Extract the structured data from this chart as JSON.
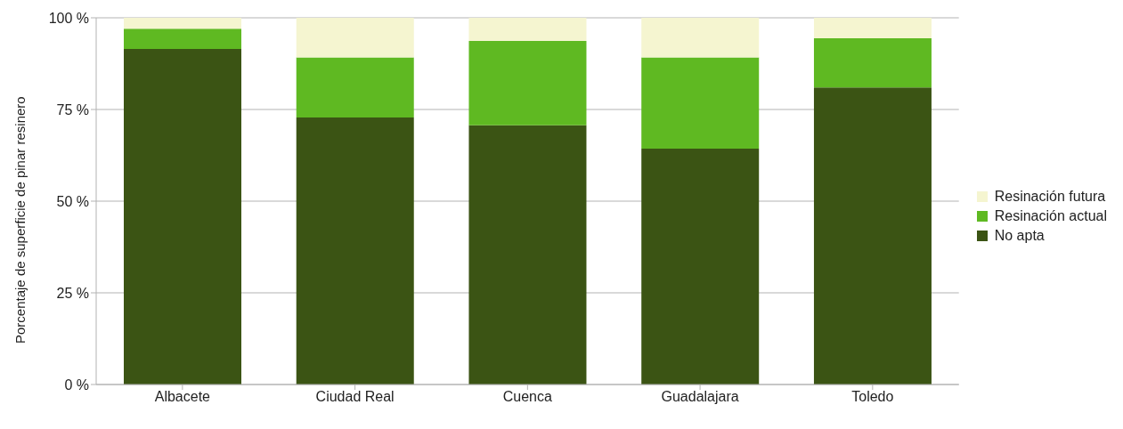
{
  "chart_data": {
    "type": "bar",
    "stacked": true,
    "ylabel": "Porcentaje de superficie de pinar resinero",
    "categories": [
      "Albacete",
      "Ciudad Real",
      "Cuenca",
      "Guadalajara",
      "Toledo"
    ],
    "series": [
      {
        "name": "No apta",
        "color": "#3b5414",
        "values": [
          91.5,
          72.8,
          70.7,
          64.3,
          81.0
        ]
      },
      {
        "name": "Resinación actual",
        "color": "#5fb922",
        "values": [
          5.5,
          16.4,
          23.0,
          24.9,
          13.4
        ]
      },
      {
        "name": "Resinación futura",
        "color": "#f5f5d0",
        "values": [
          3.0,
          10.8,
          6.3,
          10.8,
          5.6
        ]
      }
    ],
    "ylim": [
      0,
      100
    ],
    "yticks": [
      {
        "value": 0,
        "label": "0 %"
      },
      {
        "value": 25,
        "label": "25 %"
      },
      {
        "value": 50,
        "label": "50 %"
      },
      {
        "value": 75,
        "label": "75 %"
      },
      {
        "value": 100,
        "label": "100 %"
      }
    ],
    "grid": "y",
    "legend": "right"
  }
}
